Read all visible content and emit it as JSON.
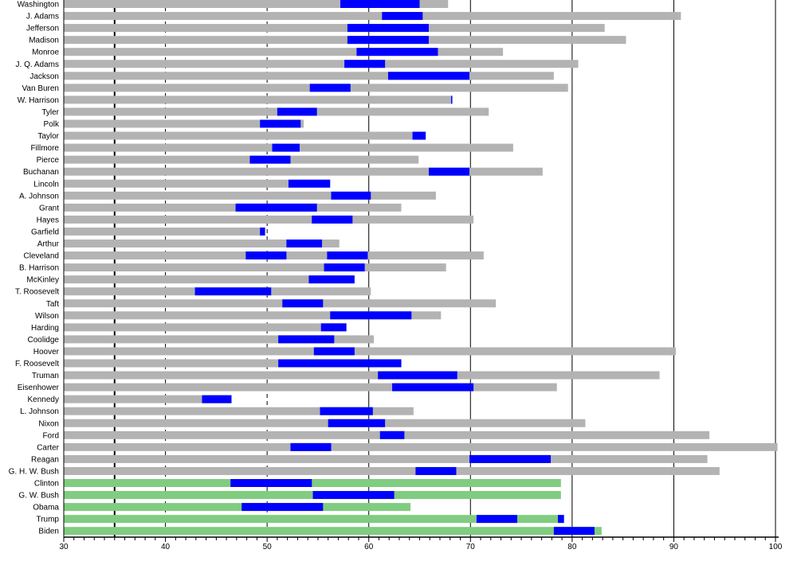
{
  "chart_data": {
    "type": "bar",
    "subtype": "horizontal-range-timeline",
    "title": "",
    "xlabel": "",
    "ylabel": "",
    "xlim": [
      30,
      100
    ],
    "x_ticks": [
      30,
      40,
      50,
      60,
      70,
      80,
      90,
      100
    ],
    "grid": "vertical; dashed at 40 and 50, solid from 60 up",
    "reference_line": 35,
    "legend": "none",
    "colors": {
      "deceased": "#b3b3b3",
      "living": "#80cc80",
      "in_office": "#0000ff",
      "gridline": "#000000"
    },
    "presidents": [
      {
        "name": "Washington",
        "terms": [
          [
            57.2,
            65.0
          ]
        ],
        "end_age": 67.8,
        "living": false
      },
      {
        "name": "J. Adams",
        "terms": [
          [
            61.3,
            65.3
          ]
        ],
        "end_age": 90.7,
        "living": false
      },
      {
        "name": "Jefferson",
        "terms": [
          [
            57.9,
            65.9
          ]
        ],
        "end_age": 83.2,
        "living": false
      },
      {
        "name": "Madison",
        "terms": [
          [
            57.9,
            65.9
          ]
        ],
        "end_age": 85.3,
        "living": false
      },
      {
        "name": "Monroe",
        "terms": [
          [
            58.8,
            66.8
          ]
        ],
        "end_age": 73.2,
        "living": false
      },
      {
        "name": "J. Q. Adams",
        "terms": [
          [
            57.6,
            61.6
          ]
        ],
        "end_age": 80.6,
        "living": false
      },
      {
        "name": "Jackson",
        "terms": [
          [
            61.9,
            69.9
          ]
        ],
        "end_age": 78.2,
        "living": false
      },
      {
        "name": "Van Buren",
        "terms": [
          [
            54.2,
            58.2
          ]
        ],
        "end_age": 79.6,
        "living": false
      },
      {
        "name": "W. Harrison",
        "terms": [
          [
            68.1,
            68.2
          ]
        ],
        "end_age": 68.2,
        "living": false
      },
      {
        "name": "Tyler",
        "terms": [
          [
            51.0,
            54.9
          ]
        ],
        "end_age": 71.8,
        "living": false
      },
      {
        "name": "Polk",
        "terms": [
          [
            49.3,
            53.3
          ]
        ],
        "end_age": 53.6,
        "living": false
      },
      {
        "name": "Taylor",
        "terms": [
          [
            64.3,
            65.6
          ]
        ],
        "end_age": 65.6,
        "living": false
      },
      {
        "name": "Fillmore",
        "terms": [
          [
            50.5,
            53.2
          ]
        ],
        "end_age": 74.2,
        "living": false
      },
      {
        "name": "Pierce",
        "terms": [
          [
            48.3,
            52.3
          ]
        ],
        "end_age": 64.9,
        "living": false
      },
      {
        "name": "Buchanan",
        "terms": [
          [
            65.9,
            69.9
          ]
        ],
        "end_age": 77.1,
        "living": false
      },
      {
        "name": "Lincoln",
        "terms": [
          [
            52.1,
            56.2
          ]
        ],
        "end_age": 56.2,
        "living": false
      },
      {
        "name": "A. Johnson",
        "terms": [
          [
            56.3,
            60.2
          ]
        ],
        "end_age": 66.6,
        "living": false
      },
      {
        "name": "Grant",
        "terms": [
          [
            46.9,
            54.9
          ]
        ],
        "end_age": 63.2,
        "living": false
      },
      {
        "name": "Hayes",
        "terms": [
          [
            54.4,
            58.4
          ]
        ],
        "end_age": 70.3,
        "living": false
      },
      {
        "name": "Garfield",
        "terms": [
          [
            49.3,
            49.8
          ]
        ],
        "end_age": 49.8,
        "living": false
      },
      {
        "name": "Arthur",
        "terms": [
          [
            51.9,
            55.4
          ]
        ],
        "end_age": 57.1,
        "living": false
      },
      {
        "name": "Cleveland",
        "terms": [
          [
            47.9,
            51.9
          ],
          [
            55.9,
            59.9
          ]
        ],
        "end_age": 71.3,
        "living": false
      },
      {
        "name": "B. Harrison",
        "terms": [
          [
            55.6,
            59.6
          ]
        ],
        "end_age": 67.6,
        "living": false
      },
      {
        "name": "McKinley",
        "terms": [
          [
            54.1,
            58.6
          ]
        ],
        "end_age": 58.6,
        "living": false
      },
      {
        "name": "T. Roosevelt",
        "terms": [
          [
            42.9,
            50.4
          ]
        ],
        "end_age": 60.2,
        "living": false
      },
      {
        "name": "Taft",
        "terms": [
          [
            51.5,
            55.5
          ]
        ],
        "end_age": 72.5,
        "living": false
      },
      {
        "name": "Wilson",
        "terms": [
          [
            56.2,
            64.2
          ]
        ],
        "end_age": 67.1,
        "living": false
      },
      {
        "name": "Harding",
        "terms": [
          [
            55.3,
            57.8
          ]
        ],
        "end_age": 57.8,
        "living": false
      },
      {
        "name": "Coolidge",
        "terms": [
          [
            51.1,
            56.6
          ]
        ],
        "end_age": 60.5,
        "living": false
      },
      {
        "name": "Hoover",
        "terms": [
          [
            54.6,
            58.6
          ]
        ],
        "end_age": 90.2,
        "living": false
      },
      {
        "name": "F. Roosevelt",
        "terms": [
          [
            51.1,
            63.2
          ]
        ],
        "end_age": 63.2,
        "living": false
      },
      {
        "name": "Truman",
        "terms": [
          [
            60.9,
            68.7
          ]
        ],
        "end_age": 88.6,
        "living": false
      },
      {
        "name": "Eisenhower",
        "terms": [
          [
            62.3,
            70.3
          ]
        ],
        "end_age": 78.5,
        "living": false
      },
      {
        "name": "Kennedy",
        "terms": [
          [
            43.6,
            46.5
          ]
        ],
        "end_age": 46.5,
        "living": false
      },
      {
        "name": "L. Johnson",
        "terms": [
          [
            55.2,
            60.4
          ]
        ],
        "end_age": 64.4,
        "living": false
      },
      {
        "name": "Nixon",
        "terms": [
          [
            56.0,
            61.6
          ]
        ],
        "end_age": 81.3,
        "living": false
      },
      {
        "name": "Ford",
        "terms": [
          [
            61.1,
            63.5
          ]
        ],
        "end_age": 93.5,
        "living": false
      },
      {
        "name": "Carter",
        "terms": [
          [
            52.3,
            56.3
          ]
        ],
        "end_age": 100.2,
        "living": false
      },
      {
        "name": "Reagan",
        "terms": [
          [
            69.9,
            77.9
          ]
        ],
        "end_age": 93.3,
        "living": false
      },
      {
        "name": "G. H. W. Bush",
        "terms": [
          [
            64.6,
            68.6
          ]
        ],
        "end_age": 94.5,
        "living": false
      },
      {
        "name": "Clinton",
        "terms": [
          [
            46.4,
            54.4
          ]
        ],
        "end_age": 78.9,
        "living": true
      },
      {
        "name": "G. W. Bush",
        "terms": [
          [
            54.5,
            62.5
          ]
        ],
        "end_age": 78.9,
        "living": true
      },
      {
        "name": "Obama",
        "terms": [
          [
            47.5,
            55.5
          ]
        ],
        "end_age": 64.1,
        "living": true
      },
      {
        "name": "Trump",
        "terms": [
          [
            70.6,
            74.6
          ],
          [
            78.6,
            79.2
          ]
        ],
        "end_age": 79.2,
        "living": true
      },
      {
        "name": "Biden",
        "terms": [
          [
            78.2,
            82.2
          ]
        ],
        "end_age": 82.9,
        "living": true
      }
    ]
  }
}
